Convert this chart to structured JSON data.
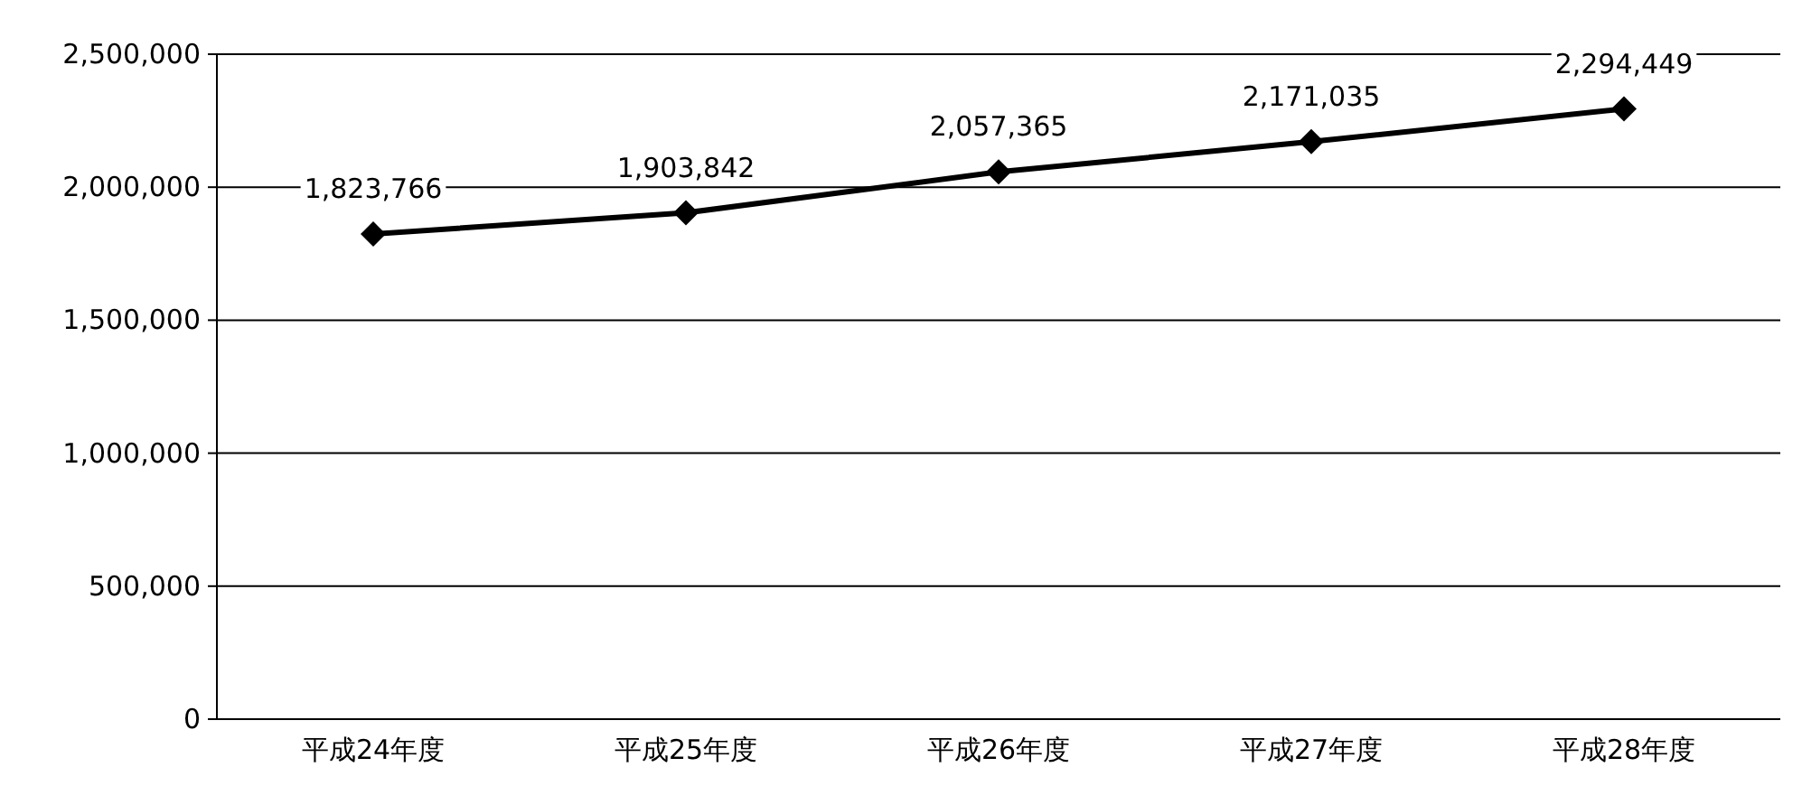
{
  "chart_data": {
    "type": "line",
    "categories": [
      "平成24年度",
      "平成25年度",
      "平成26年度",
      "平成27年度",
      "平成28年度"
    ],
    "series": [
      {
        "color": "#000000",
        "values": [
          1823766,
          1903842,
          2057365,
          2171035,
          2294449
        ],
        "value_labels": [
          "1,823,766",
          "1,903,842",
          "2,057,365",
          "2,171,035",
          "2,294,449"
        ]
      }
    ],
    "ylim": [
      0,
      2500000
    ],
    "yticks": [
      {
        "value": 0,
        "label": "0"
      },
      {
        "value": 500000,
        "label": "500,000"
      },
      {
        "value": 1000000,
        "label": "1,000,000"
      },
      {
        "value": 1500000,
        "label": "1,500,000"
      },
      {
        "value": 2000000,
        "label": "2,000,000"
      },
      {
        "value": 2500000,
        "label": "2,500,000"
      }
    ],
    "grid": "y",
    "marker": "diamond",
    "line_style": "solid"
  }
}
